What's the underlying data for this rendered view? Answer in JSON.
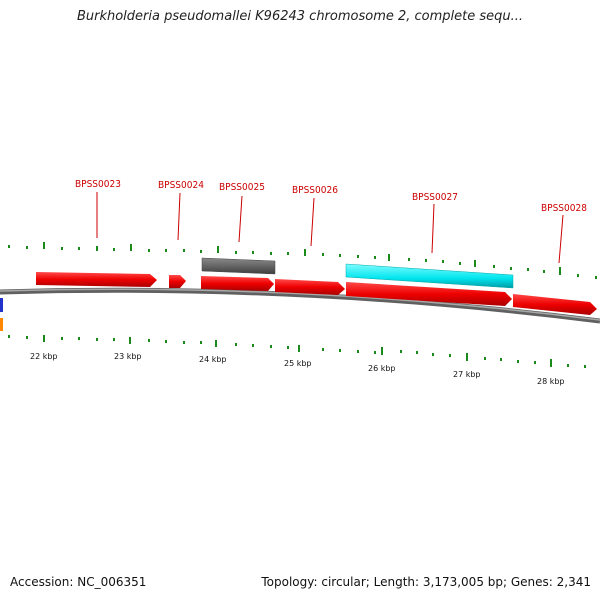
{
  "title": "Burkholderia pseudomallei K96243 chromosome 2, complete sequ...",
  "footer": {
    "accession": "Accession: NC_006351",
    "stats": "Topology: circular; Length: 3,173,005 bp; Genes: 2,341"
  },
  "colors": {
    "gene_forward": "#ff0000",
    "gene_highlight": "#00e5ee",
    "gene_other": "#666666",
    "backbone": "#777777",
    "tick": "#1a8a1a",
    "label": "#cc0000"
  },
  "gene_labels": [
    "BPSS0023",
    "BPSS0024",
    "BPSS0025",
    "BPSS0026",
    "BPSS0027",
    "BPSS0028"
  ],
  "scale_labels": [
    "22 kbp",
    "23 kbp",
    "24 kbp",
    "25 kbp",
    "26 kbp",
    "27 kbp",
    "28 kbp"
  ]
}
